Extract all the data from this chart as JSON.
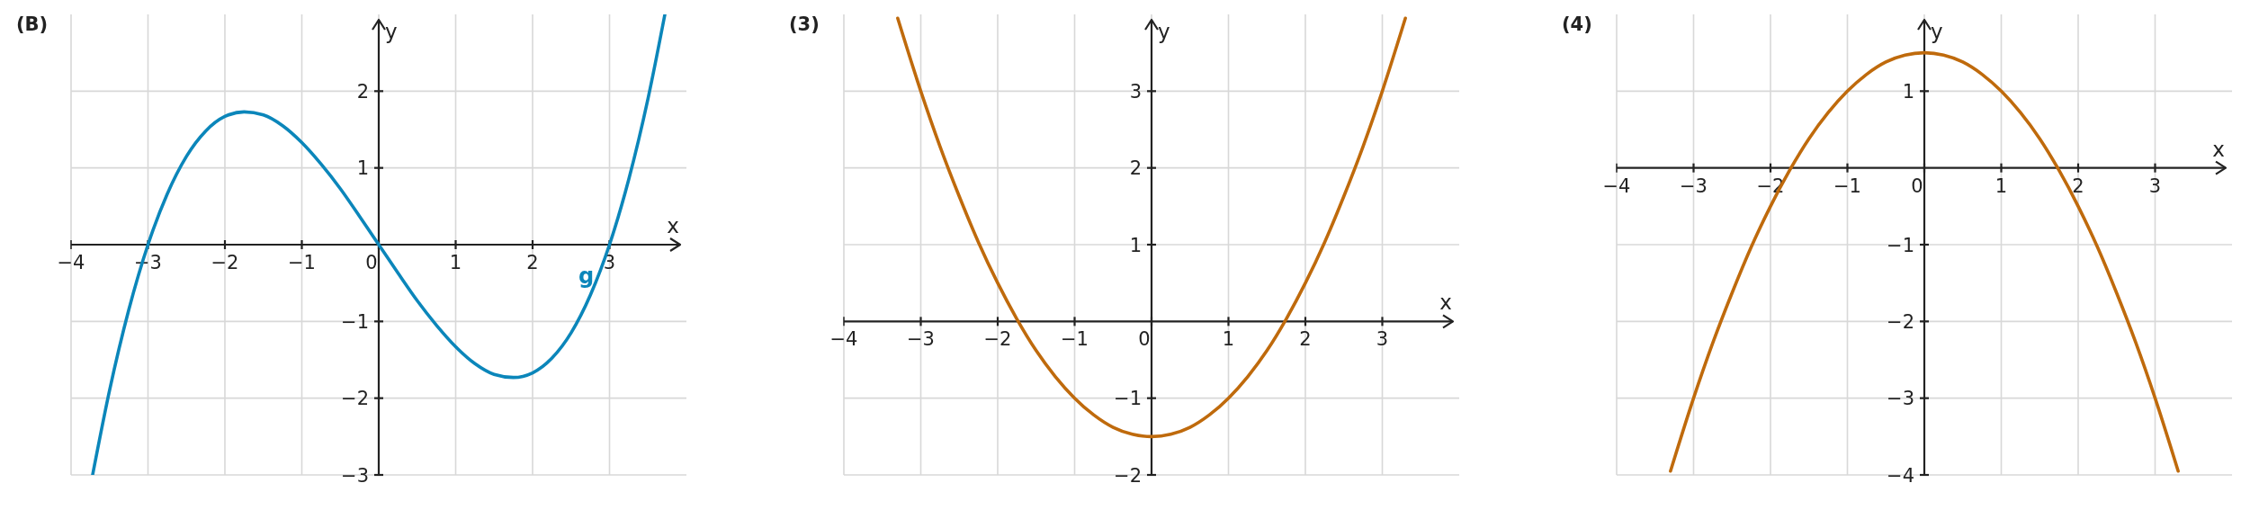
{
  "chart_data": [
    {
      "type": "line",
      "title": "(B)",
      "xlabel": "x",
      "ylabel": "y",
      "grid": true,
      "x": [
        -3.72,
        -3.5,
        -3.25,
        -3,
        -2.75,
        -2.5,
        -2.25,
        -2,
        -1.75,
        -1.5,
        -1.25,
        -1,
        -0.75,
        -0.5,
        -0.25,
        0,
        0.25,
        0.5,
        0.75,
        1,
        1.25,
        1.5,
        1.75,
        2,
        2.25,
        2.5,
        2.75,
        3,
        3.25,
        3.5,
        3.72
      ],
      "series": [
        {
          "name": "g",
          "color": "#0b86ba",
          "values": [
            -3,
            -1.9,
            -0.85,
            0,
            0.66,
            1.15,
            1.48,
            1.67,
            1.73,
            1.69,
            1.55,
            1.33,
            1.05,
            0.73,
            0.37,
            0,
            -0.37,
            -0.73,
            -1.05,
            -1.33,
            -1.55,
            -1.69,
            -1.73,
            -1.67,
            -1.48,
            -1.15,
            -0.66,
            0,
            0.85,
            1.9,
            3
          ]
        }
      ],
      "xlim": [
        -4,
        4
      ],
      "ylim": [
        -3,
        3
      ],
      "xticks": [
        {
          "value": -4,
          "label": "−4"
        },
        {
          "value": -3,
          "label": "−3"
        },
        {
          "value": -2,
          "label": "−2"
        },
        {
          "value": -1,
          "label": "−1"
        },
        0,
        1,
        2,
        3
      ],
      "yticks": [
        {
          "value": -3,
          "label": "−3"
        },
        {
          "value": -2,
          "label": "−2"
        },
        {
          "value": -1,
          "label": "−1"
        },
        1,
        2
      ]
    },
    {
      "type": "line",
      "title": "(3)",
      "xlabel": "x",
      "ylabel": "y",
      "grid": true,
      "x": [
        -3.3,
        -3,
        -2.75,
        -2.5,
        -2.25,
        -2,
        -1.75,
        -1.5,
        -1.25,
        -1,
        -0.75,
        -0.5,
        -0.25,
        0,
        0.25,
        0.5,
        0.75,
        1,
        1.25,
        1.5,
        1.75,
        2,
        2.25,
        2.5,
        2.75,
        3,
        3.3
      ],
      "series": [
        {
          "color": "#bf6a0c",
          "values": [
            3.95,
            3,
            2.28,
            1.63,
            1.03,
            0.5,
            0.03,
            -0.38,
            -0.72,
            -1,
            -1.22,
            -1.38,
            -1.47,
            -1.5,
            -1.47,
            -1.38,
            -1.22,
            -1,
            -0.72,
            -0.38,
            0.03,
            0.5,
            1.03,
            1.63,
            2.28,
            3,
            3.95
          ]
        }
      ],
      "xlim": [
        -4,
        4
      ],
      "ylim": [
        -2,
        4
      ],
      "xticks": [
        {
          "value": -4,
          "label": "−4"
        },
        {
          "value": -3,
          "label": "−3"
        },
        {
          "value": -2,
          "label": "−2"
        },
        {
          "value": -1,
          "label": "−1"
        },
        0,
        1,
        2,
        3
      ],
      "yticks": [
        {
          "value": -2,
          "label": "−2"
        },
        {
          "value": -1,
          "label": "−1"
        },
        1,
        2,
        3
      ]
    },
    {
      "type": "line",
      "title": "(4)",
      "xlabel": "x",
      "ylabel": "y",
      "grid": true,
      "x": [
        -3.3,
        -3,
        -2.75,
        -2.5,
        -2.25,
        -2,
        -1.75,
        -1.5,
        -1.25,
        -1,
        -0.75,
        -0.5,
        -0.25,
        0,
        0.25,
        0.5,
        0.75,
        1,
        1.25,
        1.5,
        1.75,
        2,
        2.25,
        2.5,
        2.75,
        3,
        3.3
      ],
      "series": [
        {
          "color": "#bf6a0c",
          "values": [
            -3.95,
            -3,
            -2.28,
            -1.63,
            -1.03,
            -0.5,
            -0.03,
            0.38,
            0.72,
            1,
            1.22,
            1.38,
            1.47,
            1.5,
            1.47,
            1.38,
            1.22,
            1,
            0.72,
            0.38,
            -0.03,
            -0.5,
            -1.03,
            -1.63,
            -2.28,
            -3,
            -3.95
          ]
        }
      ],
      "xlim": [
        -4,
        4
      ],
      "ylim": [
        -4,
        2
      ],
      "xticks": [
        {
          "value": -4,
          "label": "−4"
        },
        {
          "value": -3,
          "label": "−3"
        },
        {
          "value": -2,
          "label": "−2"
        },
        {
          "value": -1,
          "label": "−1"
        },
        0,
        1,
        2,
        3
      ],
      "yticks": [
        {
          "value": -4,
          "label": "−4"
        },
        {
          "value": -3,
          "label": "−3"
        },
        {
          "value": -2,
          "label": "−2"
        },
        {
          "value": -1,
          "label": "−1"
        },
        1
      ]
    }
  ]
}
